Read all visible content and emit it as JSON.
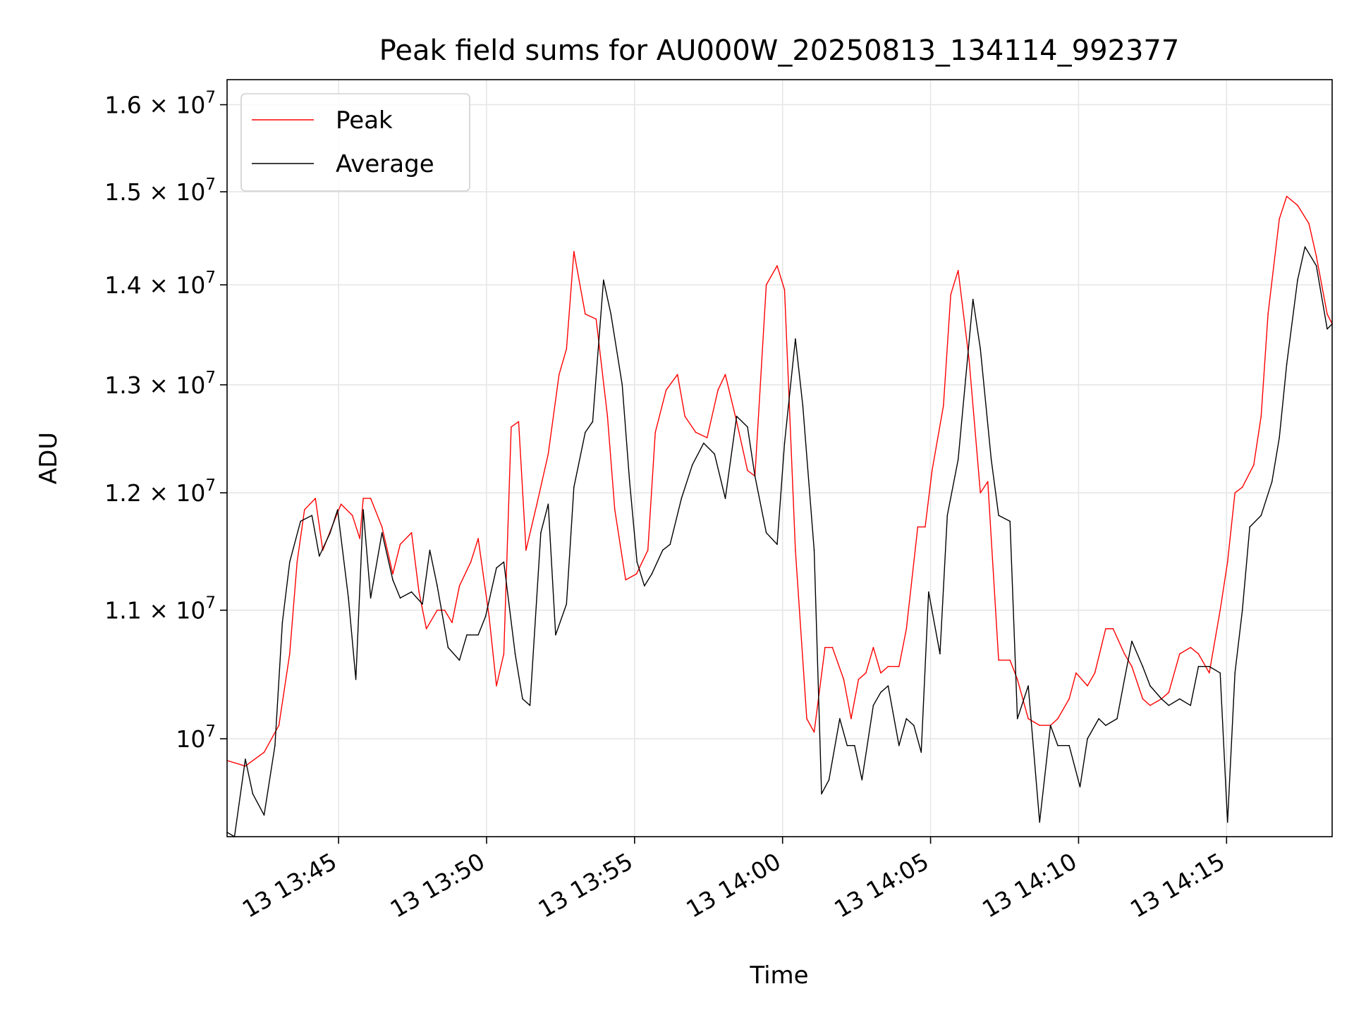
{
  "chart_data": {
    "type": "line",
    "title": "Peak field sums for AU000W_20250813_134114_992377",
    "xlabel": "Time",
    "ylabel": "ADU",
    "y_scale": "log",
    "ylim": [
      9300000,
      16300000
    ],
    "xlim": [
      "13:41:14",
      "14:18:34"
    ],
    "grid": true,
    "legend": "top-left",
    "x_ticks": [
      "13 13:45",
      "13 13:50",
      "13 13:55",
      "13 14:00",
      "13 14:05",
      "13 14:10",
      "13 14:15"
    ],
    "x_tick_times": [
      "13:45:00",
      "13:50:00",
      "13:55:00",
      "14:00:00",
      "14:05:00",
      "14:10:00",
      "14:15:00"
    ],
    "y_ticks": [
      {
        "value": 10000000,
        "mantissa": "",
        "base": "10",
        "exp": "7"
      },
      {
        "value": 11000000,
        "mantissa": "1.1",
        "base": "10",
        "exp": "7"
      },
      {
        "value": 12000000,
        "mantissa": "1.2",
        "base": "10",
        "exp": "7"
      },
      {
        "value": 13000000,
        "mantissa": "1.3",
        "base": "10",
        "exp": "7"
      },
      {
        "value": 14000000,
        "mantissa": "1.4",
        "base": "10",
        "exp": "7"
      },
      {
        "value": 15000000,
        "mantissa": "1.5",
        "base": "10",
        "exp": "7"
      },
      {
        "value": 16000000,
        "mantissa": "1.6",
        "base": "10",
        "exp": "7"
      }
    ],
    "series": [
      {
        "name": "Peak",
        "color": "#ff0000",
        "points": [
          [
            "13:41:14",
            9840000
          ],
          [
            "13:41:51",
            9800000
          ],
          [
            "13:42:29",
            9900000
          ],
          [
            "13:42:59",
            10100000
          ],
          [
            "13:43:21",
            10650000
          ],
          [
            "13:43:36",
            11400000
          ],
          [
            "13:43:51",
            11850000
          ],
          [
            "13:44:13",
            11950000
          ],
          [
            "13:44:28",
            11500000
          ],
          [
            "13:44:51",
            11750000
          ],
          [
            "13:45:05",
            11900000
          ],
          [
            "13:45:28",
            11800000
          ],
          [
            "13:45:43",
            11600000
          ],
          [
            "13:45:50",
            11950000
          ],
          [
            "13:46:05",
            11950000
          ],
          [
            "13:46:28",
            11700000
          ],
          [
            "13:46:50",
            11300000
          ],
          [
            "13:47:05",
            11550000
          ],
          [
            "13:47:28",
            11650000
          ],
          [
            "13:47:43",
            11150000
          ],
          [
            "13:47:58",
            10850000
          ],
          [
            "13:48:20",
            11000000
          ],
          [
            "13:48:35",
            11000000
          ],
          [
            "13:48:50",
            10900000
          ],
          [
            "13:49:05",
            11200000
          ],
          [
            "13:49:28",
            11400000
          ],
          [
            "13:49:43",
            11600000
          ],
          [
            "13:50:05",
            10950000
          ],
          [
            "13:50:20",
            10400000
          ],
          [
            "13:50:35",
            10650000
          ],
          [
            "13:50:50",
            12600000
          ],
          [
            "13:51:05",
            12650000
          ],
          [
            "13:51:20",
            11500000
          ],
          [
            "13:51:42",
            11900000
          ],
          [
            "13:52:05",
            12350000
          ],
          [
            "13:52:27",
            13100000
          ],
          [
            "13:52:42",
            13350000
          ],
          [
            "13:52:57",
            14350000
          ],
          [
            "13:53:20",
            13700000
          ],
          [
            "13:53:42",
            13650000
          ],
          [
            "13:54:05",
            12700000
          ],
          [
            "13:54:20",
            11850000
          ],
          [
            "13:54:42",
            11250000
          ],
          [
            "13:55:04",
            11300000
          ],
          [
            "13:55:27",
            11500000
          ],
          [
            "13:55:42",
            12550000
          ],
          [
            "13:56:04",
            12950000
          ],
          [
            "13:56:27",
            13100000
          ],
          [
            "13:56:42",
            12700000
          ],
          [
            "13:57:04",
            12550000
          ],
          [
            "13:57:27",
            12500000
          ],
          [
            "13:57:49",
            12950000
          ],
          [
            "13:58:04",
            13100000
          ],
          [
            "13:58:27",
            12650000
          ],
          [
            "13:58:49",
            12200000
          ],
          [
            "13:59:04",
            12150000
          ],
          [
            "13:59:27",
            14000000
          ],
          [
            "13:59:49",
            14200000
          ],
          [
            "14:00:04",
            13950000
          ],
          [
            "14:00:26",
            11500000
          ],
          [
            "14:00:49",
            10150000
          ],
          [
            "14:01:04",
            10050000
          ],
          [
            "14:01:26",
            10700000
          ],
          [
            "14:01:41",
            10700000
          ],
          [
            "14:02:04",
            10450000
          ],
          [
            "14:02:19",
            10150000
          ],
          [
            "14:02:34",
            10450000
          ],
          [
            "14:02:49",
            10500000
          ],
          [
            "14:03:04",
            10700000
          ],
          [
            "14:03:19",
            10500000
          ],
          [
            "14:03:34",
            10550000
          ],
          [
            "14:03:56",
            10550000
          ],
          [
            "14:04:11",
            10850000
          ],
          [
            "14:04:34",
            11700000
          ],
          [
            "14:04:49",
            11700000
          ],
          [
            "14:05:03",
            12200000
          ],
          [
            "14:05:26",
            12800000
          ],
          [
            "14:05:41",
            13900000
          ],
          [
            "14:05:56",
            14150000
          ],
          [
            "14:06:18",
            13250000
          ],
          [
            "14:06:41",
            12000000
          ],
          [
            "14:06:56",
            12100000
          ],
          [
            "14:07:18",
            10600000
          ],
          [
            "14:07:41",
            10600000
          ],
          [
            "14:07:56",
            10450000
          ],
          [
            "14:08:18",
            10150000
          ],
          [
            "14:08:41",
            10100000
          ],
          [
            "14:09:03",
            10100000
          ],
          [
            "14:09:18",
            10150000
          ],
          [
            "14:09:41",
            10300000
          ],
          [
            "14:09:55",
            10500000
          ],
          [
            "14:10:18",
            10400000
          ],
          [
            "14:10:33",
            10500000
          ],
          [
            "14:10:55",
            10850000
          ],
          [
            "14:11:10",
            10850000
          ],
          [
            "14:11:33",
            10650000
          ],
          [
            "14:11:48",
            10550000
          ],
          [
            "14:12:10",
            10300000
          ],
          [
            "14:12:25",
            10250000
          ],
          [
            "14:12:48",
            10300000
          ],
          [
            "14:13:03",
            10350000
          ],
          [
            "14:13:25",
            10650000
          ],
          [
            "14:13:47",
            10700000
          ],
          [
            "14:14:03",
            10650000
          ],
          [
            "14:14:25",
            10500000
          ],
          [
            "14:14:47",
            11000000
          ],
          [
            "14:15:02",
            11400000
          ],
          [
            "14:15:17",
            12000000
          ],
          [
            "14:15:32",
            12050000
          ],
          [
            "14:15:55",
            12250000
          ],
          [
            "14:16:10",
            12700000
          ],
          [
            "14:16:24",
            13700000
          ],
          [
            "14:16:47",
            14700000
          ],
          [
            "14:17:02",
            14950000
          ],
          [
            "14:17:24",
            14850000
          ],
          [
            "14:17:47",
            14650000
          ],
          [
            "14:18:02",
            14300000
          ],
          [
            "14:18:24",
            13700000
          ],
          [
            "14:18:34",
            13600000
          ]
        ]
      },
      {
        "name": "Average",
        "color": "#000000",
        "points": [
          [
            "13:41:14",
            9330000
          ],
          [
            "13:41:29",
            9300000
          ],
          [
            "13:41:51",
            9850000
          ],
          [
            "13:42:06",
            9600000
          ],
          [
            "13:42:29",
            9450000
          ],
          [
            "13:42:51",
            9950000
          ],
          [
            "13:43:06",
            10900000
          ],
          [
            "13:43:21",
            11400000
          ],
          [
            "13:43:43",
            11750000
          ],
          [
            "13:44:06",
            11800000
          ],
          [
            "13:44:21",
            11450000
          ],
          [
            "13:44:43",
            11650000
          ],
          [
            "13:44:58",
            11850000
          ],
          [
            "13:45:20",
            11100000
          ],
          [
            "13:45:35",
            10450000
          ],
          [
            "13:45:50",
            11850000
          ],
          [
            "13:46:05",
            11100000
          ],
          [
            "13:46:28",
            11650000
          ],
          [
            "13:46:50",
            11250000
          ],
          [
            "13:47:05",
            11100000
          ],
          [
            "13:47:28",
            11150000
          ],
          [
            "13:47:50",
            11050000
          ],
          [
            "13:48:05",
            11500000
          ],
          [
            "13:48:20",
            11200000
          ],
          [
            "13:48:42",
            10700000
          ],
          [
            "13:49:05",
            10600000
          ],
          [
            "13:49:20",
            10800000
          ],
          [
            "13:49:43",
            10800000
          ],
          [
            "13:49:58",
            10950000
          ],
          [
            "13:50:20",
            11350000
          ],
          [
            "13:50:35",
            11400000
          ],
          [
            "13:50:58",
            10650000
          ],
          [
            "13:51:13",
            10300000
          ],
          [
            "13:51:28",
            10250000
          ],
          [
            "13:51:50",
            11650000
          ],
          [
            "13:52:05",
            11900000
          ],
          [
            "13:52:20",
            10800000
          ],
          [
            "13:52:42",
            11050000
          ],
          [
            "13:52:57",
            12050000
          ],
          [
            "13:53:20",
            12550000
          ],
          [
            "13:53:35",
            12650000
          ],
          [
            "13:53:57",
            14050000
          ],
          [
            "13:54:12",
            13700000
          ],
          [
            "13:54:35",
            13000000
          ],
          [
            "13:54:50",
            12100000
          ],
          [
            "13:55:05",
            11400000
          ],
          [
            "13:55:20",
            11200000
          ],
          [
            "13:55:35",
            11300000
          ],
          [
            "13:55:57",
            11500000
          ],
          [
            "13:56:12",
            11550000
          ],
          [
            "13:56:35",
            11950000
          ],
          [
            "13:56:57",
            12250000
          ],
          [
            "13:57:20",
            12450000
          ],
          [
            "13:57:42",
            12350000
          ],
          [
            "13:58:04",
            11950000
          ],
          [
            "13:58:27",
            12700000
          ],
          [
            "13:58:49",
            12600000
          ],
          [
            "13:59:04",
            12150000
          ],
          [
            "13:59:27",
            11650000
          ],
          [
            "13:59:49",
            11550000
          ],
          [
            "14:00:04",
            12450000
          ],
          [
            "14:00:26",
            13450000
          ],
          [
            "14:00:41",
            12800000
          ],
          [
            "14:01:04",
            11500000
          ],
          [
            "14:01:19",
            9600000
          ],
          [
            "14:01:34",
            9700000
          ],
          [
            "14:01:56",
            10150000
          ],
          [
            "14:02:11",
            9950000
          ],
          [
            "14:02:26",
            9950000
          ],
          [
            "14:02:41",
            9700000
          ],
          [
            "14:03:04",
            10250000
          ],
          [
            "14:03:19",
            10350000
          ],
          [
            "14:03:34",
            10400000
          ],
          [
            "14:03:56",
            9950000
          ],
          [
            "14:04:11",
            10150000
          ],
          [
            "14:04:26",
            10100000
          ],
          [
            "14:04:41",
            9900000
          ],
          [
            "14:04:56",
            11150000
          ],
          [
            "14:05:19",
            10650000
          ],
          [
            "14:05:34",
            11800000
          ],
          [
            "14:05:56",
            12300000
          ],
          [
            "14:06:11",
            13050000
          ],
          [
            "14:06:26",
            13850000
          ],
          [
            "14:06:41",
            13350000
          ],
          [
            "14:07:03",
            12300000
          ],
          [
            "14:07:18",
            11800000
          ],
          [
            "14:07:41",
            11750000
          ],
          [
            "14:07:56",
            10150000
          ],
          [
            "14:08:18",
            10400000
          ],
          [
            "14:08:41",
            9400000
          ],
          [
            "14:09:03",
            10100000
          ],
          [
            "14:09:18",
            9950000
          ],
          [
            "14:09:41",
            9950000
          ],
          [
            "14:10:03",
            9650000
          ],
          [
            "14:10:18",
            10000000
          ],
          [
            "14:10:41",
            10150000
          ],
          [
            "14:10:55",
            10100000
          ],
          [
            "14:11:18",
            10150000
          ],
          [
            "14:11:33",
            10450000
          ],
          [
            "14:11:48",
            10750000
          ],
          [
            "14:12:10",
            10550000
          ],
          [
            "14:12:25",
            10400000
          ],
          [
            "14:12:48",
            10300000
          ],
          [
            "14:13:03",
            10250000
          ],
          [
            "14:13:25",
            10300000
          ],
          [
            "14:13:47",
            10250000
          ],
          [
            "14:14:03",
            10550000
          ],
          [
            "14:14:25",
            10550000
          ],
          [
            "14:14:47",
            10500000
          ],
          [
            "14:15:02",
            9400000
          ],
          [
            "14:15:17",
            10500000
          ],
          [
            "14:15:32",
            11000000
          ],
          [
            "14:15:47",
            11700000
          ],
          [
            "14:16:10",
            11800000
          ],
          [
            "14:16:32",
            12100000
          ],
          [
            "14:16:47",
            12500000
          ],
          [
            "14:17:02",
            13200000
          ],
          [
            "14:17:24",
            14050000
          ],
          [
            "14:17:39",
            14400000
          ],
          [
            "14:18:02",
            14200000
          ],
          [
            "14:18:24",
            13550000
          ],
          [
            "14:18:34",
            13600000
          ]
        ]
      }
    ]
  }
}
